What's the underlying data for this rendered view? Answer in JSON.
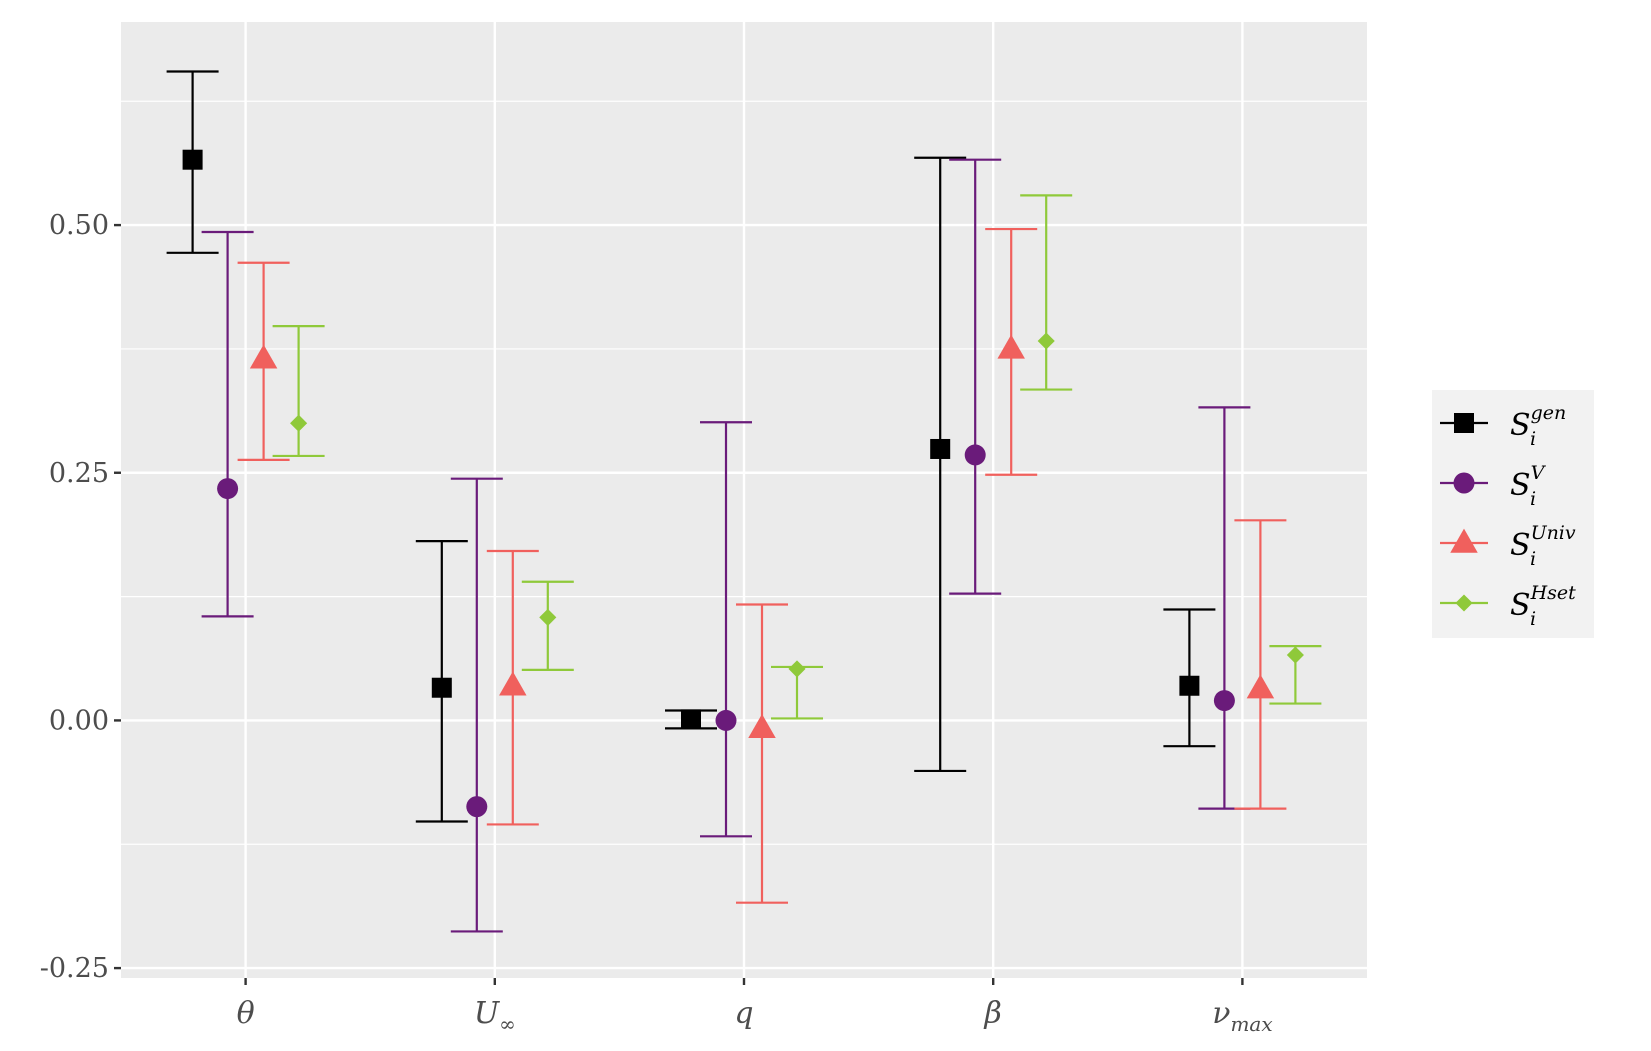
{
  "chart_data": {
    "type": "errorbar",
    "title": "",
    "xlabel": "",
    "ylabel": "",
    "categories": [
      "θ",
      "U∞",
      "q",
      "β",
      "νmax"
    ],
    "category_labels": [
      {
        "base": "θ",
        "sub": ""
      },
      {
        "base": "U",
        "sub": "∞"
      },
      {
        "base": "q",
        "sub": ""
      },
      {
        "base": "β",
        "sub": ""
      },
      {
        "base": "ν",
        "sub": "max"
      }
    ],
    "ylim": [
      -0.26,
      0.705
    ],
    "yticks": [
      -0.25,
      0.0,
      0.25,
      0.5
    ],
    "ytick_labels": [
      "-0.25",
      "0.00",
      "0.25",
      "0.50"
    ],
    "grid": true,
    "legend_position": "right",
    "series": [
      {
        "name": "S_i^gen",
        "base": "S",
        "sub": "i",
        "sup": "gen",
        "color": "#000000",
        "marker": "square",
        "values": [
          0.566,
          0.033,
          0.001,
          0.274,
          0.035
        ],
        "lower": [
          0.472,
          -0.102,
          -0.008,
          -0.051,
          -0.026
        ],
        "upper": [
          0.655,
          0.181,
          0.01,
          0.568,
          0.112
        ]
      },
      {
        "name": "S_i^V",
        "base": "S",
        "sub": "i",
        "sup": "V",
        "color": "#6a1b7a",
        "marker": "circle",
        "values": [
          0.234,
          -0.087,
          0.0,
          0.268,
          0.02
        ],
        "lower": [
          0.105,
          -0.213,
          -0.117,
          0.128,
          -0.089
        ],
        "upper": [
          0.493,
          0.244,
          0.301,
          0.566,
          0.316
        ]
      },
      {
        "name": "S_i^Univ",
        "base": "S",
        "sub": "i",
        "sup": "Univ",
        "color": "#f0605d",
        "marker": "triangle",
        "values": [
          0.365,
          0.035,
          -0.008,
          0.375,
          0.032
        ],
        "lower": [
          0.263,
          -0.105,
          -0.184,
          0.248,
          -0.089
        ],
        "upper": [
          0.462,
          0.171,
          0.117,
          0.496,
          0.202
        ]
      },
      {
        "name": "S_i^Hset",
        "base": "S",
        "sub": "i",
        "sup": "Hset",
        "color": "#8fc93a",
        "marker": "diamond",
        "values": [
          0.3,
          0.104,
          0.052,
          0.383,
          0.066
        ],
        "lower": [
          0.267,
          0.051,
          0.002,
          0.334,
          0.017
        ],
        "upper": [
          0.398,
          0.14,
          0.054,
          0.53,
          0.075
        ]
      }
    ]
  }
}
